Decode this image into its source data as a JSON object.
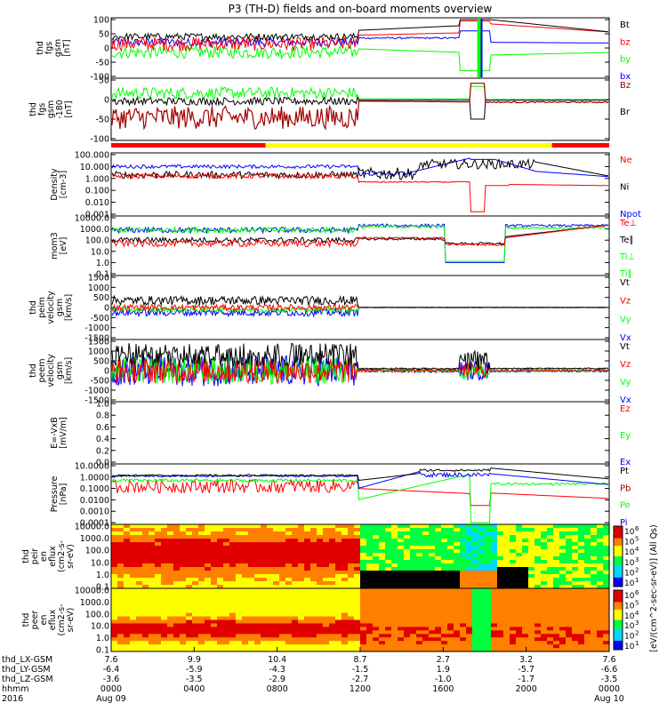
{
  "title": "P3 (TH-D) fields and on-board moments overview",
  "colors": {
    "black": "#000000",
    "red": "#ff0000",
    "green": "#00ff00",
    "blue": "#0000ff",
    "darkred": "#a00000",
    "yellow": "#ffff00"
  },
  "chart_data": [
    {
      "type": "line",
      "panel": "fgs",
      "ylabel_lines": [
        "thd",
        "fgs",
        "gsm",
        "[nT]"
      ],
      "yticks": [
        "100",
        "50",
        "0",
        "-50",
        "-100"
      ],
      "ylim": [
        -100,
        100
      ],
      "series": [
        {
          "name": "Bt",
          "color": "black"
        },
        {
          "name": "bz",
          "color": "red"
        },
        {
          "name": "by",
          "color": "green"
        },
        {
          "name": "bx",
          "color": "blue"
        }
      ]
    },
    {
      "type": "line",
      "panel": "fgs_rot",
      "ylabel_lines": [
        "thd",
        "fgs",
        "gsm",
        "-180",
        "[nT]"
      ],
      "yticks": [
        "50",
        "0",
        "-50",
        "-100"
      ],
      "ylim": [
        -120,
        60
      ],
      "series": [
        {
          "name": "Bz",
          "color": "darkred"
        },
        {
          "name": "Br",
          "color": "black"
        },
        {
          "name": "",
          "color": "green"
        }
      ]
    },
    {
      "type": "line",
      "panel": "density",
      "ylabel_lines": [
        "Density",
        "[cm-3]"
      ],
      "yscale": "log",
      "yticks": [
        "100.000",
        "10.000",
        "1.000",
        "0.100",
        "0.010",
        "0.001"
      ],
      "series": [
        {
          "name": "Ne",
          "color": "red"
        },
        {
          "name": "Ni",
          "color": "black"
        },
        {
          "name": "Npot",
          "color": "blue"
        }
      ]
    },
    {
      "type": "line",
      "panel": "temperature",
      "ylabel_lines": [
        "mom3",
        "[eV]"
      ],
      "yscale": "log",
      "yticks": [
        "10000.0",
        "1000.0",
        "100.0",
        "10.0",
        "1.0",
        "0.1"
      ],
      "series": [
        {
          "name": "Te⊥",
          "color": "red"
        },
        {
          "name": "Te∥",
          "color": "black"
        },
        {
          "name": "Ti⊥",
          "color": "green"
        },
        {
          "name": "Ti∥",
          "color": "green"
        }
      ]
    },
    {
      "type": "line",
      "panel": "peim_velocity",
      "ylabel_lines": [
        "thd",
        "peim",
        "velocity",
        "gsm",
        "[km/s]"
      ],
      "yticks": [
        "1500",
        "1000",
        "500",
        "0",
        "-500",
        "-1000",
        "-1500"
      ],
      "series": [
        {
          "name": "Vt",
          "color": "black"
        },
        {
          "name": "Vz",
          "color": "red"
        },
        {
          "name": "Vy",
          "color": "green"
        },
        {
          "name": "Vx",
          "color": "blue"
        }
      ]
    },
    {
      "type": "line",
      "panel": "peem_velocity",
      "ylabel_lines": [
        "thd",
        "peem",
        "velocity",
        "gsm",
        "[km/s]"
      ],
      "yticks": [
        "1500",
        "1000",
        "500",
        "0",
        "-500",
        "-1000",
        "-1500"
      ],
      "series": [
        {
          "name": "Vt",
          "color": "black"
        },
        {
          "name": "Vz",
          "color": "red"
        },
        {
          "name": "Vy",
          "color": "green"
        },
        {
          "name": "Vx",
          "color": "blue"
        }
      ]
    },
    {
      "type": "line",
      "panel": "efield",
      "ylabel_lines": [
        "E=-VxB",
        "[mV/m]"
      ],
      "yticks": [
        "1.0",
        "0.8",
        "0.6",
        "0.4",
        "0.2",
        "0.0"
      ],
      "series": [
        {
          "name": "Ez",
          "color": "red"
        },
        {
          "name": "Ey",
          "color": "green"
        },
        {
          "name": "Ex",
          "color": "blue"
        }
      ]
    },
    {
      "type": "line",
      "panel": "pressure",
      "ylabel_lines": [
        "Pressure",
        "[nPa]"
      ],
      "yscale": "log",
      "yticks": [
        "10.0000",
        "1.0000",
        "0.1000",
        "0.0100",
        "0.0010",
        "0.0001"
      ],
      "series": [
        {
          "name": "Pt",
          "color": "black"
        },
        {
          "name": "Pb",
          "color": "darkred"
        },
        {
          "name": "Pe",
          "color": "green"
        },
        {
          "name": "Pi",
          "color": "blue"
        }
      ]
    },
    {
      "type": "heatmap",
      "panel": "peir_spec",
      "ylabel_lines": [
        "thd",
        "peir",
        "en",
        "eflux",
        "(cm2-s-",
        "sr-eV)"
      ],
      "yticks": [
        "10000.0",
        "1000.0",
        "100.0",
        "10.0",
        "1.0",
        "0.1"
      ]
    },
    {
      "type": "heatmap",
      "panel": "peer_spec",
      "ylabel_lines": [
        "thd",
        "peer",
        "en",
        "eflux",
        "(cm2-s-",
        "sr-eV)"
      ],
      "yticks": [
        "10000.0",
        "1000.0",
        "100.0",
        "10.0",
        "1.0",
        "0.1"
      ]
    }
  ],
  "colorbar": {
    "ticks": [
      "10",
      "10",
      "10",
      "10",
      "10",
      "10"
    ],
    "exps": [
      "6",
      "5",
      "4",
      "3",
      "2",
      "1"
    ],
    "label": "[eV/(cm^2-sec-sr-eV)] (All Qs)"
  },
  "colorbar2": {
    "ticks": [
      "10",
      "10",
      "10",
      "10",
      "10",
      "10"
    ],
    "exps": [
      "6",
      "5",
      "4",
      "3",
      "2",
      "1"
    ]
  },
  "xaxis": {
    "row_labels": [
      "thd_LX-GSM",
      "thd_LY-GSM",
      "thd_LZ-GSM",
      "hhmm",
      "2016"
    ],
    "columns": [
      {
        "lx": "7.6",
        "ly": "-6.4",
        "lz": "-3.6",
        "hhmm": "0000",
        "date": "Aug 09"
      },
      {
        "lx": "9.9",
        "ly": "-5.9",
        "lz": "-3.5",
        "hhmm": "0400",
        "date": ""
      },
      {
        "lx": "10.4",
        "ly": "-4.3",
        "lz": "-2.9",
        "hhmm": "0800",
        "date": ""
      },
      {
        "lx": "8.7",
        "ly": "-1.5",
        "lz": "-2.7",
        "hhmm": "1200",
        "date": ""
      },
      {
        "lx": "2.7",
        "ly": "1.9",
        "lz": "-1.0",
        "hhmm": "1600",
        "date": ""
      },
      {
        "lx": "3.2",
        "ly": "-5.7",
        "lz": "-1.7",
        "hhmm": "2000",
        "date": ""
      },
      {
        "lx": "7.6",
        "ly": "-6.6",
        "lz": "-3.5",
        "hhmm": "0000",
        "date": "Aug 10"
      }
    ]
  }
}
